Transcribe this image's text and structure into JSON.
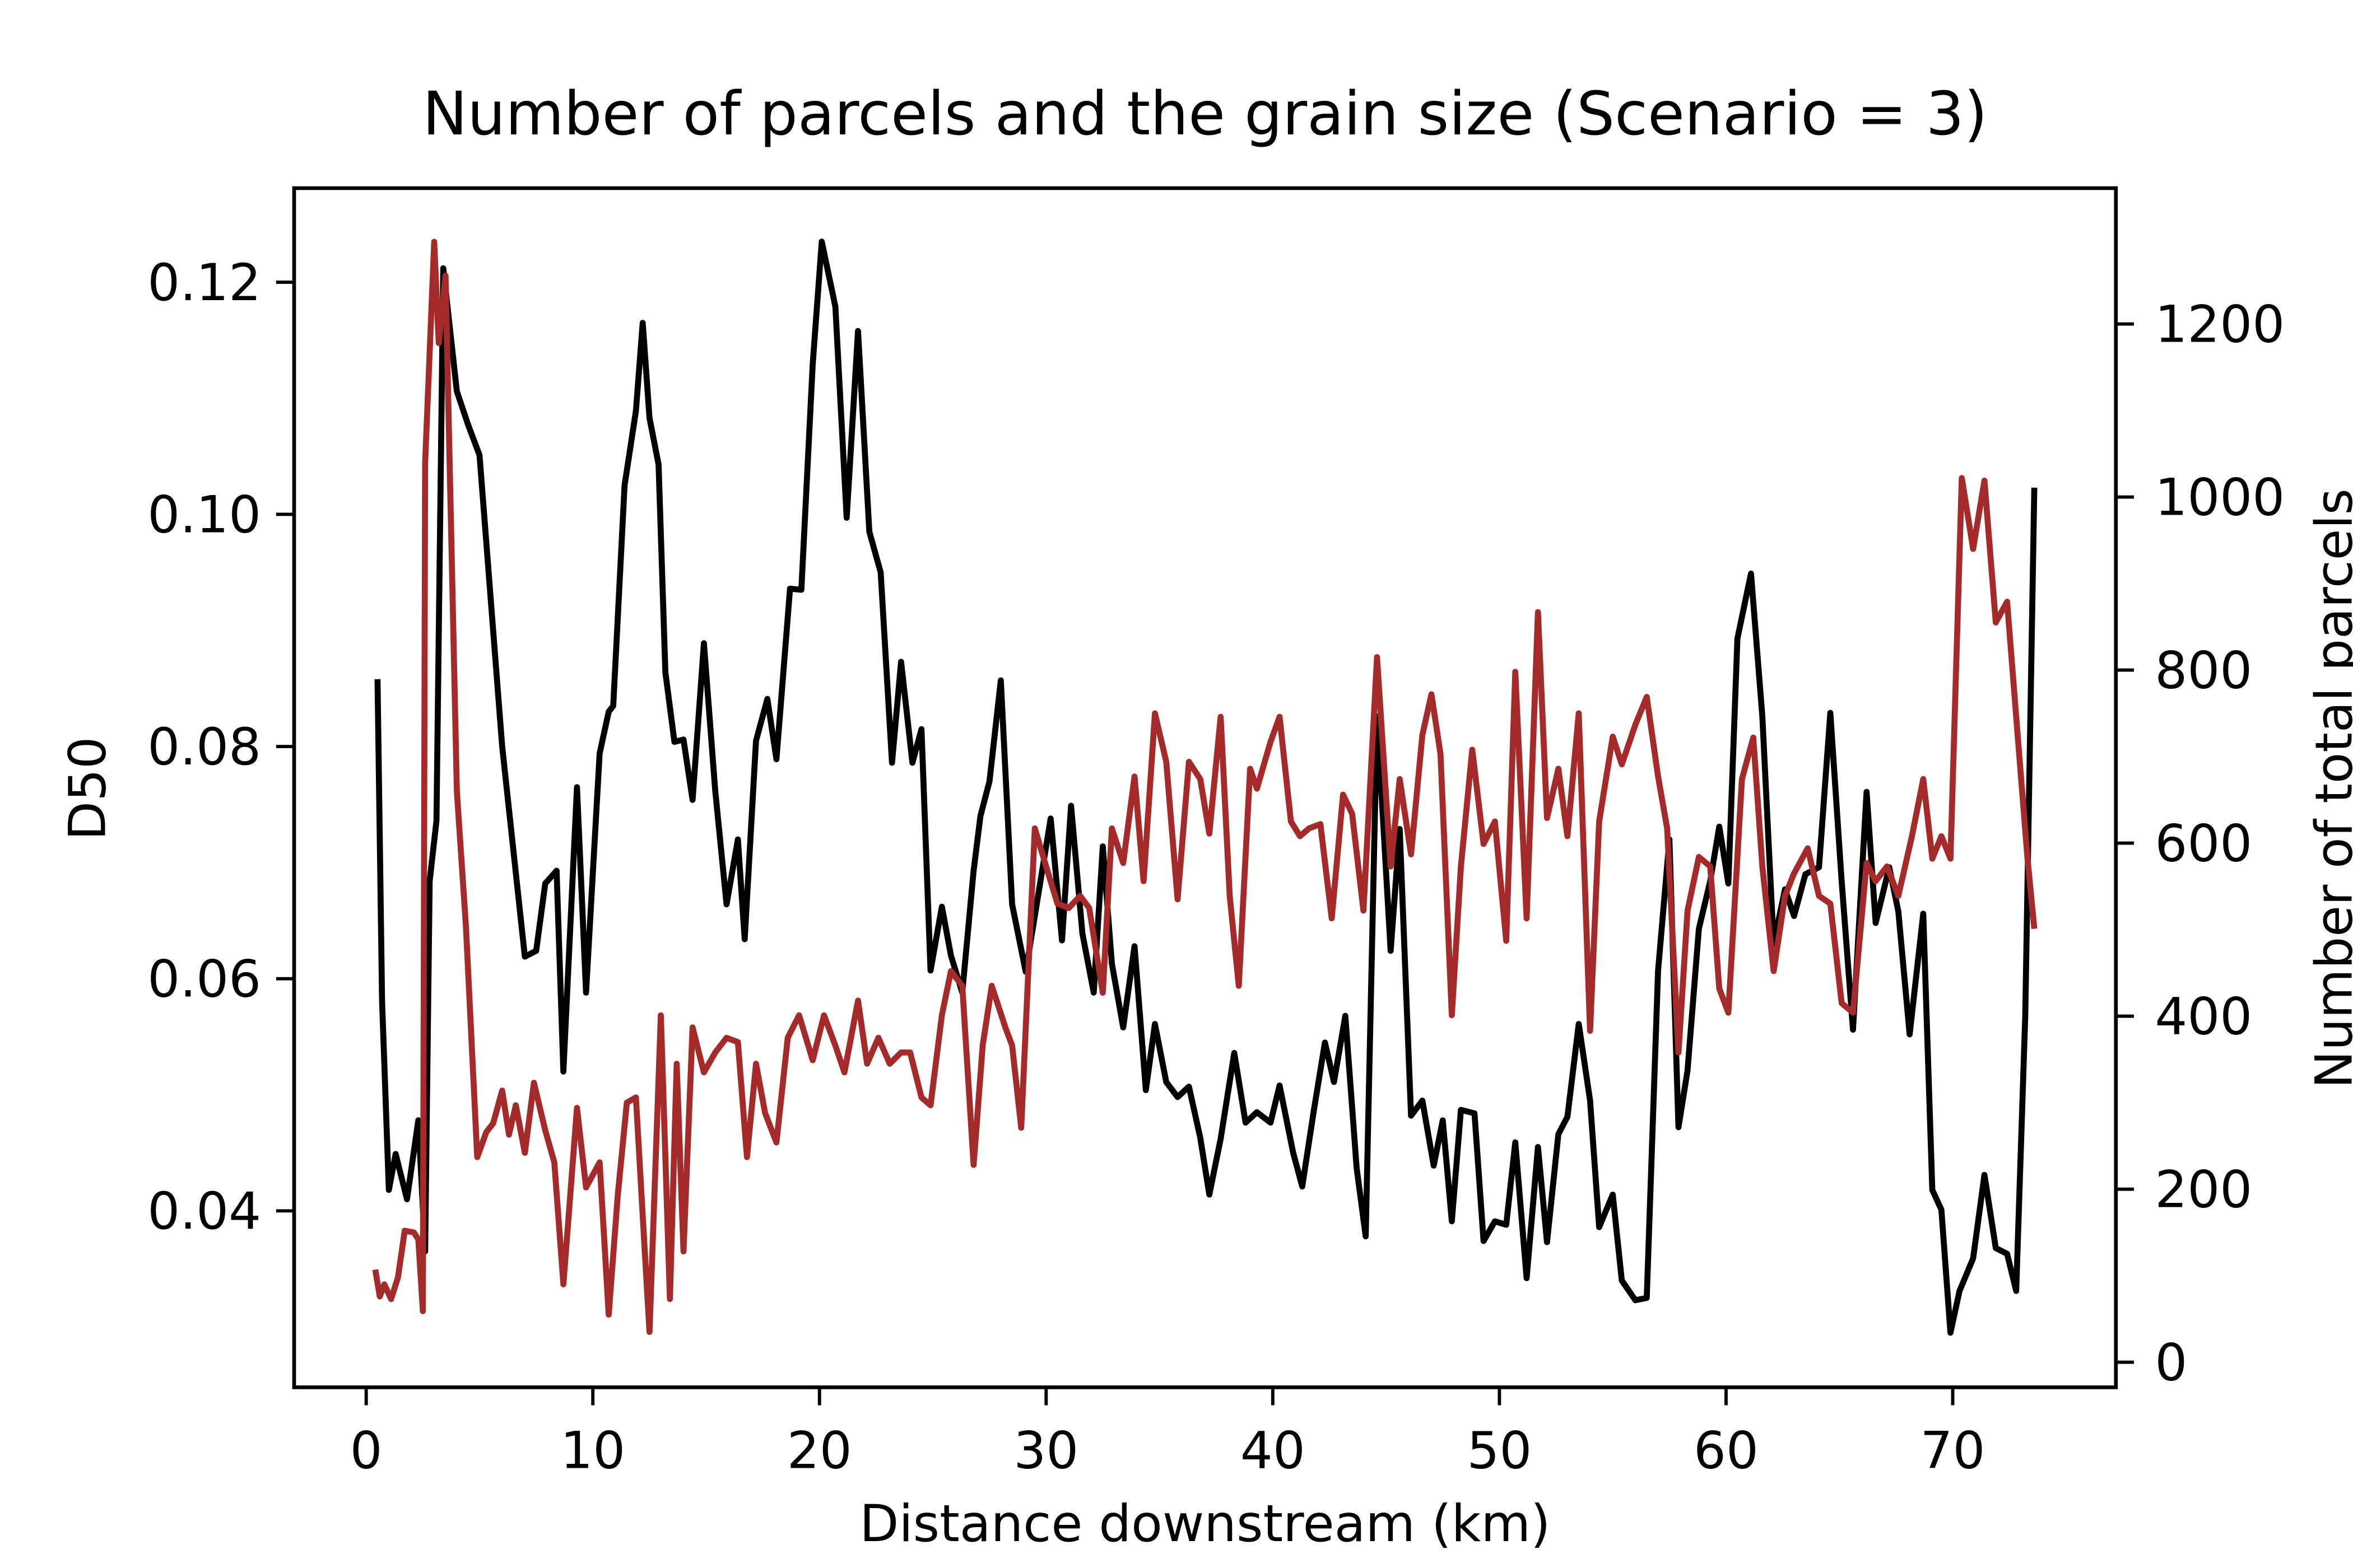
{
  "chart_data": {
    "type": "line",
    "title": "Number of parcels and the grain size (Scenario = 3)",
    "x_label": "Distance downstream (km)",
    "y_label": "D50",
    "y2_label": "Number of total parcels",
    "y2_label_color": "#a52a2a",
    "xlim": [
      -3.18,
      77.2
    ],
    "ylim": [
      0.0248,
      0.1281
    ],
    "y2lim": [
      -29,
      1357
    ],
    "xticks": [
      0,
      10,
      20,
      30,
      40,
      50,
      60,
      70
    ],
    "yticks": [
      0.04,
      0.06,
      0.08,
      {
        "value": 0.1,
        "label": "0.10"
      },
      0.12
    ],
    "y2ticks": [
      0,
      200,
      400,
      600,
      800,
      1000,
      1200
    ],
    "grid": false,
    "series": [
      {
        "color": "#000000",
        "axis": "y",
        "x": [
          0.5,
          0.7,
          1.0,
          1.3,
          1.8,
          2.3,
          2.6,
          2.8,
          3.1,
          3.4,
          4.0,
          4.5,
          5.0,
          6.0,
          7.0,
          7.5,
          7.9,
          8.4,
          8.7,
          9.3,
          9.7,
          10.3,
          10.7,
          10.9,
          11.4,
          11.9,
          12.2,
          12.5,
          12.9,
          13.2,
          13.6,
          14.0,
          14.4,
          14.9,
          15.4,
          15.9,
          16.4,
          16.7,
          17.2,
          17.7,
          18.1,
          18.7,
          19.2,
          19.7,
          20.1,
          20.7,
          21.2,
          21.7,
          22.2,
          22.7,
          23.2,
          23.6,
          24.1,
          24.5,
          24.9,
          25.4,
          25.8,
          26.3,
          26.8,
          27.1,
          27.5,
          28.0,
          28.5,
          29.1,
          29.7,
          30.2,
          30.7,
          31.1,
          31.6,
          32.1,
          32.5,
          32.9,
          33.4,
          33.9,
          34.4,
          34.8,
          35.3,
          35.8,
          36.3,
          36.8,
          37.2,
          37.7,
          38.3,
          38.8,
          39.3,
          39.9,
          40.3,
          40.9,
          41.3,
          41.8,
          42.3,
          42.7,
          43.2,
          43.7,
          44.1,
          44.6,
          45.2,
          45.6,
          46.1,
          46.6,
          47.1,
          47.5,
          47.9,
          48.3,
          48.9,
          49.3,
          49.8,
          50.3,
          50.7,
          51.2,
          51.7,
          52.1,
          52.6,
          53.0,
          53.5,
          54.0,
          54.4,
          55.0,
          55.4,
          56.0,
          56.5,
          57.0,
          57.5,
          57.9,
          58.3,
          58.8,
          59.3,
          59.7,
          60.1,
          60.5,
          61.1,
          61.6,
          62.1,
          62.6,
          63.0,
          63.5,
          64.1,
          64.6,
          65.1,
          65.6,
          66.2,
          66.6,
          67.2,
          67.6,
          68.1,
          68.7,
          69.1,
          69.5,
          69.9,
          70.3,
          70.9,
          71.4,
          71.9,
          72.4,
          72.8,
          73.2,
          73.6
        ],
        "values": [
          0.0858,
          0.0581,
          0.0418,
          0.0449,
          0.041,
          0.0478,
          0.0365,
          0.0684,
          0.0736,
          0.1212,
          0.1106,
          0.1077,
          0.1051,
          0.08,
          0.0619,
          0.0624,
          0.0682,
          0.0693,
          0.052,
          0.0765,
          0.0588,
          0.0794,
          0.083,
          0.0835,
          0.1025,
          0.1089,
          0.1165,
          0.1083,
          0.1043,
          0.0864,
          0.0804,
          0.0806,
          0.0754,
          0.0889,
          0.0762,
          0.0664,
          0.072,
          0.0634,
          0.0805,
          0.0841,
          0.0789,
          0.0936,
          0.0935,
          0.1129,
          0.1235,
          0.1179,
          0.0997,
          0.1158,
          0.0985,
          0.095,
          0.0786,
          0.0873,
          0.0786,
          0.0815,
          0.0607,
          0.0662,
          0.062,
          0.0588,
          0.0693,
          0.074,
          0.077,
          0.0857,
          0.0664,
          0.0606,
          0.0678,
          0.0738,
          0.0633,
          0.0749,
          0.0639,
          0.0588,
          0.0714,
          0.0613,
          0.0558,
          0.0628,
          0.0504,
          0.0561,
          0.0511,
          0.0498,
          0.0507,
          0.0463,
          0.0414,
          0.0462,
          0.0536,
          0.0476,
          0.0485,
          0.0476,
          0.0508,
          0.045,
          0.0421,
          0.0485,
          0.0545,
          0.0511,
          0.0568,
          0.0437,
          0.0378,
          0.0826,
          0.0624,
          0.0729,
          0.0482,
          0.0495,
          0.0439,
          0.0478,
          0.0391,
          0.0487,
          0.0484,
          0.0374,
          0.0391,
          0.0388,
          0.0459,
          0.0342,
          0.0455,
          0.0373,
          0.0466,
          0.0481,
          0.0561,
          0.0495,
          0.0386,
          0.0414,
          0.034,
          0.0323,
          0.0325,
          0.0607,
          0.072,
          0.0472,
          0.0521,
          0.0643,
          0.0684,
          0.0731,
          0.0682,
          0.0893,
          0.0949,
          0.0826,
          0.063,
          0.0677,
          0.0654,
          0.069,
          0.0696,
          0.0829,
          0.0684,
          0.0556,
          0.0761,
          0.0648,
          0.0696,
          0.0658,
          0.0552,
          0.0656,
          0.0418,
          0.0401,
          0.0295,
          0.0331,
          0.0359,
          0.0431,
          0.0368,
          0.0363,
          0.0331,
          0.0568,
          0.1023
        ]
      },
      {
        "color": "#a52a2a",
        "axis": "y2",
        "x": [
          0.4,
          0.6,
          0.8,
          1.1,
          1.4,
          1.7,
          2.1,
          2.3,
          2.5,
          2.6,
          3.0,
          3.2,
          3.5,
          4.0,
          4.4,
          4.9,
          5.3,
          5.6,
          6.0,
          6.3,
          6.6,
          7.0,
          7.4,
          7.9,
          8.3,
          8.7,
          9.3,
          9.7,
          10.3,
          10.7,
          11.1,
          11.5,
          11.9,
          12.3,
          12.5,
          13.0,
          13.4,
          13.7,
          14.0,
          14.4,
          14.9,
          15.4,
          15.9,
          16.4,
          16.8,
          17.2,
          17.6,
          18.1,
          18.6,
          19.1,
          19.7,
          20.2,
          20.7,
          21.1,
          21.7,
          22.1,
          22.6,
          23.1,
          23.6,
          24.0,
          24.5,
          24.9,
          25.4,
          25.8,
          26.3,
          26.8,
          27.2,
          27.6,
          28.2,
          28.5,
          28.9,
          29.5,
          30.0,
          30.5,
          31.0,
          31.5,
          31.9,
          32.5,
          32.9,
          33.4,
          33.9,
          34.3,
          34.8,
          35.3,
          35.8,
          36.3,
          36.8,
          37.2,
          37.7,
          38.1,
          38.5,
          39.0,
          39.3,
          39.9,
          40.3,
          40.8,
          41.2,
          41.6,
          42.1,
          42.6,
          43.1,
          43.5,
          44.0,
          44.6,
          45.2,
          45.6,
          46.1,
          46.6,
          47.0,
          47.4,
          47.9,
          48.3,
          48.8,
          49.3,
          49.8,
          50.3,
          50.7,
          51.2,
          51.7,
          52.1,
          52.6,
          53.0,
          53.5,
          54.0,
          54.4,
          55.0,
          55.4,
          56.0,
          56.5,
          57.0,
          57.4,
          57.9,
          58.3,
          58.8,
          59.3,
          59.7,
          60.1,
          60.7,
          61.2,
          61.6,
          62.1,
          62.6,
          63.0,
          63.6,
          64.1,
          64.6,
          65.1,
          65.6,
          66.2,
          66.6,
          67.1,
          67.6,
          68.2,
          68.7,
          69.1,
          69.5,
          69.9,
          70.4,
          70.9,
          71.4,
          71.9,
          72.4,
          72.8,
          73.3,
          73.6
        ],
        "values": [
          107,
          76,
          90,
          73,
          98,
          152,
          150,
          142,
          59,
          1040,
          1295,
          1178,
          1256,
          660,
          504,
          237,
          266,
          276,
          314,
          263,
          297,
          242,
          323,
          268,
          231,
          90,
          294,
          202,
          231,
          55,
          193,
          300,
          306,
          124,
          35,
          401,
          73,
          345,
          128,
          387,
          335,
          358,
          375,
          370,
          237,
          345,
          288,
          254,
          375,
          401,
          349,
          401,
          366,
          335,
          418,
          345,
          375,
          345,
          358,
          358,
          306,
          297,
          401,
          452,
          435,
          228,
          366,
          435,
          387,
          366,
          271,
          617,
          573,
          530,
          525,
          539,
          525,
          427,
          617,
          577,
          677,
          556,
          750,
          694,
          535,
          694,
          674,
          611,
          746,
          539,
          435,
          686,
          663,
          717,
          746,
          625,
          608,
          617,
          622,
          513,
          656,
          634,
          522,
          815,
          573,
          674,
          587,
          725,
          772,
          703,
          401,
          573,
          708,
          599,
          625,
          487,
          798,
          513,
          867,
          629,
          686,
          608,
          750,
          383,
          625,
          723,
          691,
          737,
          769,
          677,
          617,
          358,
          522,
          584,
          573,
          432,
          404,
          674,
          722,
          573,
          452,
          539,
          565,
          594,
          539,
          530,
          415,
          404,
          577,
          556,
          573,
          539,
          608,
          674,
          582,
          608,
          582,
          1022,
          940,
          1019,
          855,
          879,
          746,
          582,
          501
        ]
      }
    ]
  }
}
